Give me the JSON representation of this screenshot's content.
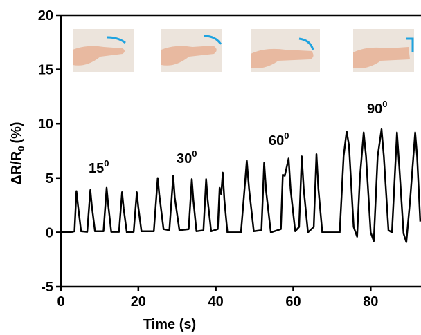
{
  "chart_data": {
    "type": "line",
    "xlabel": "Time (s)",
    "ylabel": {
      "main": "ΔR/R",
      "sub": "0",
      "unit": "(%)"
    },
    "annotations": [
      {
        "text": "15",
        "sup": "0"
      },
      {
        "text": "30",
        "sup": "0"
      },
      {
        "text": "60",
        "sup": "0"
      },
      {
        "text": "90",
        "sup": "0"
      }
    ],
    "color": "#000000",
    "x": [
      0,
      3,
      3.5,
      4,
      4.4,
      5.2,
      6.8,
      7.6,
      8,
      8.8,
      11,
      11.8,
      12.2,
      13,
      15,
      15.8,
      16.2,
      17,
      18.8,
      19.6,
      20,
      20.8,
      24,
      25,
      25.4,
      26.5,
      28,
      29,
      29.4,
      30.6,
      33,
      33.8,
      34.2,
      35,
      36.8,
      37.5,
      37.9,
      38.8,
      40.5,
      41,
      41.4,
      41.8,
      42.2,
      43,
      46.5,
      47.2,
      48,
      48.6,
      49.8,
      51.8,
      52.5,
      53,
      54.2,
      56.8,
      57.3,
      57.8,
      58.8,
      59.3,
      60.5,
      61.5,
      62.2,
      62.7,
      63.8,
      65.3,
      66,
      66.5,
      67.5,
      72,
      73,
      73.8,
      74.4,
      75.6,
      76.5,
      77.2,
      78.2,
      78.8,
      80,
      80.8,
      81.8,
      82.8,
      83.4,
      84.6,
      85.5,
      86.8,
      87.4,
      88.5,
      89.2,
      90.2,
      91.5,
      92,
      92.8
    ],
    "values": [
      0,
      0.05,
      0.1,
      3.8,
      2.5,
      0.1,
      0.05,
      3.9,
      2.4,
      0.1,
      0.1,
      4.1,
      2.6,
      0.05,
      0.05,
      3.7,
      2.2,
      0,
      0.05,
      3.7,
      2.3,
      0.1,
      0.1,
      5.0,
      3.5,
      0.3,
      0.2,
      5.2,
      3.2,
      0.2,
      0.3,
      4.9,
      3,
      0.1,
      0.2,
      4.9,
      3,
      0.1,
      0.3,
      4.1,
      3.5,
      5.5,
      3,
      0,
      0,
      3,
      6.6,
      4,
      0.1,
      0.2,
      6.4,
      3.8,
      0,
      0.3,
      5.3,
      5.2,
      6.8,
      4,
      0.1,
      0.5,
      7,
      4,
      0,
      0.5,
      7.2,
      4,
      0,
      0,
      7,
      9.3,
      8,
      0.5,
      -0.4,
      5,
      9.2,
      7,
      0,
      -0.8,
      7,
      9.5,
      7,
      0.2,
      0,
      9.2,
      6,
      -0.1,
      -0.9,
      3,
      9.2,
      7,
      1
    ],
    "xlim": [
      0,
      93
    ],
    "ylim": [
      -5,
      20
    ],
    "xticks": [
      0,
      20,
      40,
      60,
      80
    ],
    "yticks": [
      -5,
      0,
      5,
      10,
      15,
      20
    ]
  }
}
